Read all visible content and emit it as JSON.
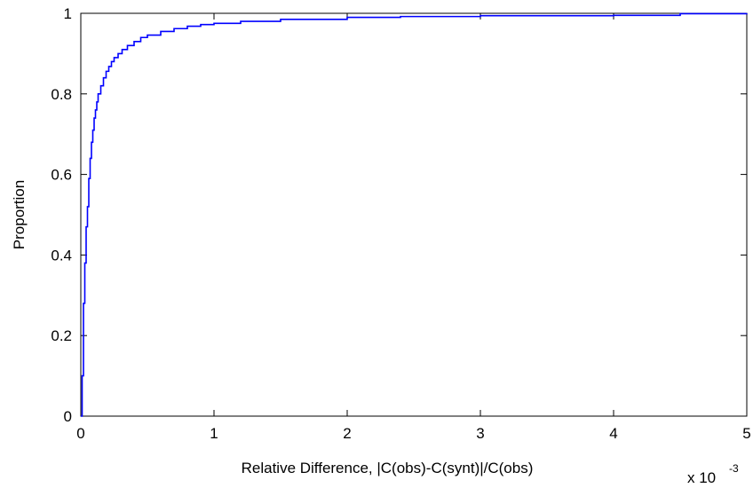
{
  "chart_data": {
    "type": "line",
    "title": "",
    "xlabel": "Relative Difference, |C(obs)-C(synt)|/C(obs)",
    "ylabel": "Proportion",
    "x_multiplier_label": {
      "base": "x 10",
      "exponent": "-3"
    },
    "xlim": [
      0,
      5
    ],
    "ylim": [
      0,
      1
    ],
    "xticks": [
      0,
      1,
      2,
      3,
      4,
      5
    ],
    "yticks": [
      0,
      0.2,
      0.4,
      0.6,
      0.8,
      1
    ],
    "grid": false,
    "legend": "none",
    "series": [
      {
        "color": "#0000ff",
        "step": true,
        "x": [
          0,
          0.01,
          0.02,
          0.03,
          0.04,
          0.05,
          0.06,
          0.07,
          0.08,
          0.09,
          0.1,
          0.11,
          0.12,
          0.13,
          0.15,
          0.17,
          0.19,
          0.21,
          0.23,
          0.25,
          0.28,
          0.31,
          0.35,
          0.4,
          0.45,
          0.5,
          0.6,
          0.7,
          0.8,
          0.9,
          1.0,
          1.2,
          1.5,
          2.0,
          2.4,
          3.0,
          4.0,
          4.5,
          5.0
        ],
        "y": [
          0,
          0.1,
          0.28,
          0.38,
          0.47,
          0.52,
          0.59,
          0.64,
          0.68,
          0.71,
          0.74,
          0.76,
          0.78,
          0.8,
          0.82,
          0.84,
          0.856,
          0.868,
          0.88,
          0.89,
          0.9,
          0.91,
          0.92,
          0.93,
          0.94,
          0.946,
          0.955,
          0.962,
          0.968,
          0.972,
          0.975,
          0.98,
          0.985,
          0.99,
          0.992,
          0.994,
          0.995,
          0.999,
          1.0
        ]
      }
    ]
  }
}
